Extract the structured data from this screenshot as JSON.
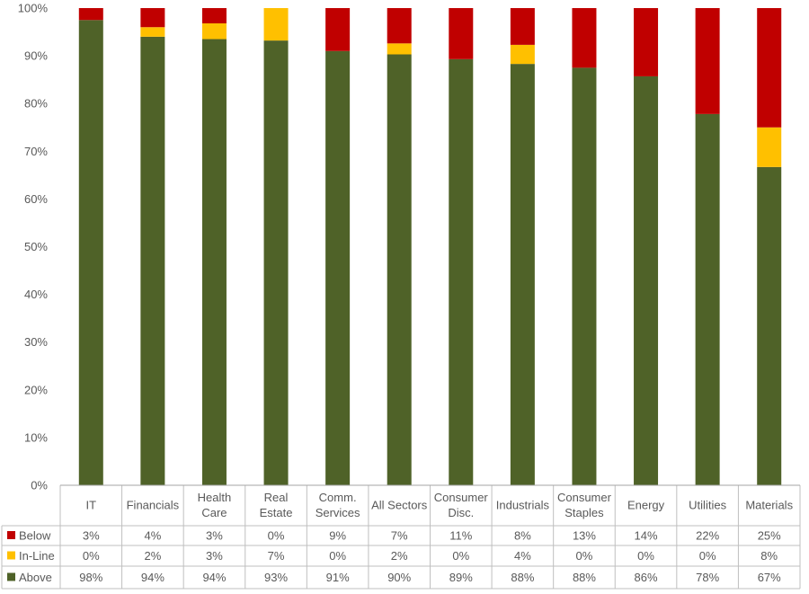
{
  "chart_data": {
    "type": "bar",
    "stacked": true,
    "ylim": [
      0,
      100
    ],
    "yticks": [
      0,
      10,
      20,
      30,
      40,
      50,
      60,
      70,
      80,
      90,
      100
    ],
    "ytick_labels": [
      "0%",
      "10%",
      "20%",
      "30%",
      "40%",
      "50%",
      "60%",
      "70%",
      "80%",
      "90%",
      "100%"
    ],
    "grid": false,
    "legend_placement": "data-table-left",
    "categories": [
      [
        "IT"
      ],
      [
        "Financials"
      ],
      [
        "Health",
        "Care"
      ],
      [
        "Real",
        "Estate"
      ],
      [
        "Comm.",
        "Services"
      ],
      [
        "All Sectors"
      ],
      [
        "Consumer",
        "Disc."
      ],
      [
        "Industrials"
      ],
      [
        "Consumer",
        "Staples"
      ],
      [
        "Energy"
      ],
      [
        "Utilities"
      ],
      [
        "Materials"
      ]
    ],
    "series": [
      {
        "name": "Above",
        "color": "#4f6228",
        "values": [
          97.5,
          94,
          93.5,
          93.2,
          91,
          90.3,
          89.3,
          88.3,
          87.5,
          85.7,
          77.8,
          66.7
        ],
        "labels": [
          "98%",
          "94%",
          "94%",
          "93%",
          "91%",
          "90%",
          "89%",
          "88%",
          "88%",
          "86%",
          "78%",
          "67%"
        ]
      },
      {
        "name": "In-Line",
        "color": "#ffc000",
        "values": [
          0,
          2,
          3.3,
          6.8,
          0,
          2.3,
          0,
          4,
          0,
          0,
          0,
          8.3
        ],
        "labels": [
          "0%",
          "2%",
          "3%",
          "7%",
          "0%",
          "2%",
          "0%",
          "4%",
          "0%",
          "0%",
          "0%",
          "8%"
        ]
      },
      {
        "name": "Below",
        "color": "#c00000",
        "values": [
          2.5,
          4,
          3.2,
          0,
          9,
          7.4,
          10.7,
          7.7,
          12.5,
          14.3,
          22.2,
          25
        ],
        "labels": [
          "3%",
          "4%",
          "3%",
          "0%",
          "9%",
          "7%",
          "11%",
          "8%",
          "13%",
          "14%",
          "22%",
          "25%"
        ]
      }
    ],
    "table_row_order": [
      "Below",
      "In-Line",
      "Above"
    ]
  }
}
